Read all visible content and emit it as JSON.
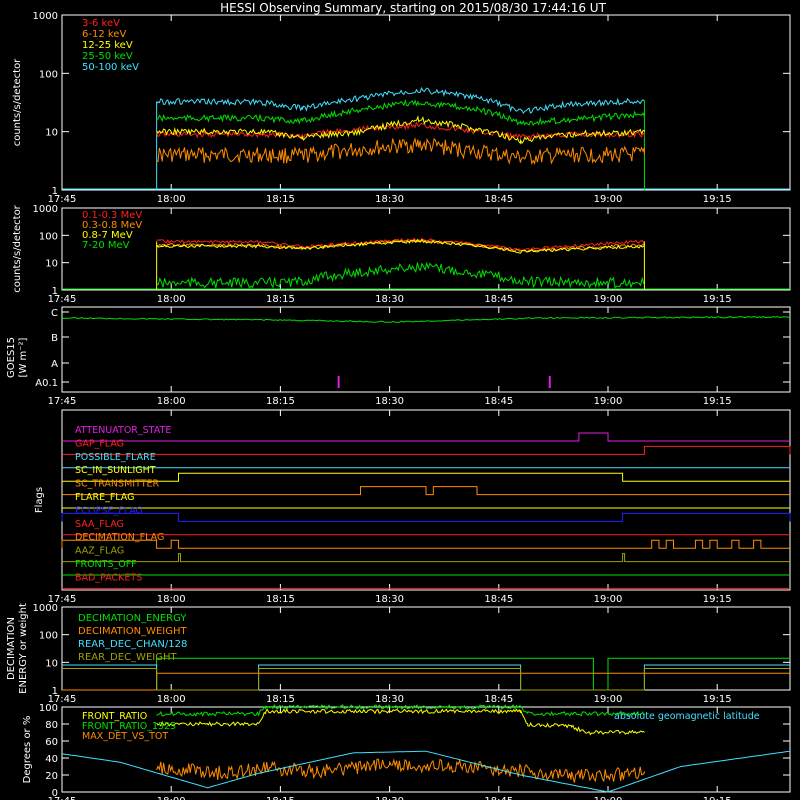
{
  "title": "HESSI Observing Summary, starting on 2015/08/30 17:44:16 UT",
  "colors": {
    "background": "#000000",
    "axis": "#ffffff",
    "red": "#ff2020",
    "orange": "#ff8c00",
    "yellow": "#ffff00",
    "green": "#00e000",
    "cyan": "#40e0ff",
    "magenta": "#e020e0",
    "blue": "#2020ff",
    "olive": "#a0a000"
  },
  "chart_data": [
    {
      "type": "line",
      "panel": "low-energy-lightcurves",
      "ylabel": "counts/s/detector",
      "yscale": "log",
      "ylim": [
        1,
        1000
      ],
      "y_ticks": [
        "1",
        "10",
        "100",
        "1000"
      ],
      "xlim": [
        "17:45",
        "19:25"
      ],
      "x_ticks": [
        "17:45",
        "18:00",
        "18:15",
        "18:30",
        "18:45",
        "19:00",
        "19:15"
      ],
      "legend_position": "top-left",
      "series": [
        {
          "name": "3-6 keV",
          "color": "red",
          "x": [
            "17:58",
            "18:12",
            "18:18",
            "18:26",
            "18:34",
            "18:42",
            "18:48",
            "18:55",
            "19:05"
          ],
          "values": [
            9,
            9,
            8.5,
            11,
            13,
            10,
            8,
            9,
            9
          ]
        },
        {
          "name": "6-12 keV",
          "color": "orange",
          "x": [
            "17:58",
            "18:12",
            "18:18",
            "18:26",
            "18:34",
            "18:42",
            "18:48",
            "18:55",
            "19:05"
          ],
          "values": [
            4,
            4,
            3.8,
            5,
            6,
            4.5,
            3.5,
            4,
            4
          ]
        },
        {
          "name": "12-25 keV",
          "color": "yellow",
          "x": [
            "17:58",
            "18:12",
            "18:18",
            "18:26",
            "18:34",
            "18:42",
            "18:48",
            "18:55",
            "19:05"
          ],
          "values": [
            10,
            10,
            8,
            10,
            16,
            11,
            7,
            9,
            10
          ]
        },
        {
          "name": "25-50 keV",
          "color": "green",
          "x": [
            "17:58",
            "18:12",
            "18:18",
            "18:26",
            "18:34",
            "18:42",
            "18:48",
            "18:55",
            "19:05"
          ],
          "values": [
            17,
            17,
            15,
            24,
            32,
            24,
            14,
            16,
            20
          ]
        },
        {
          "name": "50-100 keV",
          "color": "cyan",
          "x": [
            "17:58",
            "18:12",
            "18:18",
            "18:26",
            "18:34",
            "18:42",
            "18:48",
            "18:55",
            "19:05"
          ],
          "values": [
            33,
            32,
            25,
            38,
            52,
            38,
            22,
            30,
            34
          ]
        }
      ]
    },
    {
      "type": "line",
      "panel": "high-energy-lightcurves",
      "ylabel": "counts/s/detector",
      "yscale": "log",
      "ylim": [
        1,
        1000
      ],
      "y_ticks": [
        "1",
        "10",
        "100",
        "1000"
      ],
      "xlim": [
        "17:45",
        "19:25"
      ],
      "x_ticks": [
        "17:45",
        "18:00",
        "18:15",
        "18:30",
        "18:45",
        "19:00",
        "19:15"
      ],
      "legend_position": "top-left",
      "series": [
        {
          "name": "0.1-0.3 MeV",
          "color": "red",
          "x": [
            "17:58",
            "18:12",
            "18:18",
            "18:34",
            "18:48",
            "19:05"
          ],
          "values": [
            60,
            58,
            38,
            70,
            28,
            60
          ]
        },
        {
          "name": "0.3-0.8 MeV",
          "color": "orange",
          "x": [
            "17:58",
            "18:12",
            "18:18",
            "18:34",
            "18:48",
            "19:05"
          ],
          "values": [
            45,
            44,
            34,
            65,
            26,
            45
          ]
        },
        {
          "name": "0.8-7 MeV",
          "color": "yellow",
          "x": [
            "17:58",
            "18:12",
            "18:18",
            "18:34",
            "18:48",
            "19:05"
          ],
          "values": [
            40,
            40,
            32,
            62,
            25,
            40
          ]
        },
        {
          "name": "7-20 MeV",
          "color": "green",
          "x": [
            "17:58",
            "18:12",
            "18:18",
            "18:34",
            "18:48",
            "19:05"
          ],
          "values": [
            1.8,
            1.8,
            2,
            7,
            2,
            1.8
          ]
        }
      ]
    },
    {
      "type": "line",
      "panel": "goes",
      "ylabel_lines": [
        "GOES15",
        "[W m⁻²]"
      ],
      "y_ticks": [
        "A0.1",
        "A",
        "B",
        "C"
      ],
      "xlim": [
        "17:45",
        "19:25"
      ],
      "x_ticks": [
        "17:45",
        "18:00",
        "18:15",
        "18:30",
        "18:45",
        "19:00",
        "19:15"
      ],
      "series": [
        {
          "color": "green",
          "x": [
            "17:45",
            "18:15",
            "18:30",
            "18:50",
            "19:25"
          ],
          "values": [
            0.3,
            0.2,
            0.1,
            0.3,
            0.35
          ]
        }
      ],
      "markers": [
        {
          "color": "magenta",
          "x": "18:23"
        },
        {
          "color": "magenta",
          "x": "18:52"
        }
      ]
    },
    {
      "type": "line",
      "panel": "flags",
      "ylabel": "Flags",
      "xlim": [
        "17:45",
        "19:25"
      ],
      "x_ticks": [
        "17:45",
        "18:00",
        "18:15",
        "18:30",
        "18:45",
        "19:00",
        "19:15"
      ],
      "series": [
        {
          "name": "ATTENUATOR_STATE",
          "color": "magenta",
          "on_intervals": [
            [
              "18:56",
              "19:00"
            ]
          ]
        },
        {
          "name": "GAP_FLAG",
          "color": "red",
          "on_intervals": [
            [
              "19:05",
              "19:25"
            ]
          ]
        },
        {
          "name": "POSSIBLE_FLARE",
          "color": "cyan",
          "on_intervals": []
        },
        {
          "name": "SC_IN_SUNLIGHT",
          "color": "yellow",
          "on_intervals": [
            [
              "18:01",
              "19:02"
            ]
          ]
        },
        {
          "name": "SC_TRANSMITTER",
          "color": "orange",
          "on_intervals": [
            [
              "18:26",
              "18:35"
            ],
            [
              "18:36",
              "18:42"
            ]
          ]
        },
        {
          "name": "FLARE_FLAG",
          "color": "yellow",
          "on_intervals": []
        },
        {
          "name": "ECLIPSE_FLAG",
          "color": "blue",
          "on_intervals": [
            [
              "17:45",
              "18:01"
            ],
            [
              "19:02",
              "19:25"
            ]
          ]
        },
        {
          "name": "SAA_FLAG",
          "color": "red",
          "on_intervals": []
        },
        {
          "name": "DECIMATION_FLAG",
          "color": "orange",
          "on_intervals": [
            [
              "17:45",
              "17:58"
            ],
            [
              "18:00",
              "18:01"
            ],
            [
              "19:06",
              "19:07"
            ],
            [
              "19:08",
              "19:09"
            ],
            [
              "19:12",
              "19:13"
            ],
            [
              "19:14",
              "19:15"
            ],
            [
              "19:17",
              "19:18"
            ],
            [
              "19:20",
              "19:21"
            ]
          ]
        },
        {
          "name": "AAZ_FLAG",
          "color": "olive",
          "on_intervals": [
            [
              "18:01",
              "18:01"
            ],
            [
              "19:02",
              "19:02"
            ]
          ]
        },
        {
          "name": "FRONTS_OFF",
          "color": "green",
          "on_intervals": []
        },
        {
          "name": "BAD_PACKETS",
          "color": "red",
          "on_intervals": []
        }
      ]
    },
    {
      "type": "line",
      "panel": "decimation",
      "ylabel_lines": [
        "DECIMATION",
        "ENERGY or weight"
      ],
      "yscale": "log",
      "ylim": [
        1,
        1000
      ],
      "y_ticks": [
        "1",
        "10",
        "100",
        "1000"
      ],
      "xlim": [
        "17:45",
        "19:25"
      ],
      "x_ticks": [
        "17:45",
        "18:00",
        "18:15",
        "18:30",
        "18:45",
        "19:00",
        "19:15"
      ],
      "legend_position": "top-left",
      "series": [
        {
          "name": "DECIMATION_ENERGY",
          "color": "green",
          "steps": [
            [
              "17:45",
              1
            ],
            [
              "17:58",
              14
            ],
            [
              "18:58",
              1
            ],
            [
              "19:00",
              14
            ],
            [
              "19:25",
              14
            ]
          ]
        },
        {
          "name": "DECIMATION_WEIGHT",
          "color": "orange",
          "steps": [
            [
              "17:45",
              1
            ],
            [
              "17:58",
              4
            ],
            [
              "19:25",
              4
            ]
          ]
        },
        {
          "name": "REAR_DEC_CHAN/128",
          "color": "cyan",
          "steps": [
            [
              "17:45",
              8
            ],
            [
              "17:58",
              1
            ],
            [
              "18:12",
              8
            ],
            [
              "18:48",
              1
            ],
            [
              "19:05",
              8
            ],
            [
              "19:25",
              8
            ]
          ]
        },
        {
          "name": "REAR_DEC_WEIGHT",
          "color": "olive",
          "steps": [
            [
              "17:45",
              6
            ],
            [
              "17:58",
              1
            ],
            [
              "18:12",
              6
            ],
            [
              "18:48",
              1
            ],
            [
              "19:05",
              6
            ],
            [
              "19:25",
              6
            ]
          ]
        }
      ]
    },
    {
      "type": "line",
      "panel": "ratios",
      "ylabel": "Degrees or %",
      "ylim": [
        0,
        100
      ],
      "y_ticks": [
        "0",
        "20",
        "40",
        "60",
        "80",
        "100"
      ],
      "xlim": [
        "17:45",
        "19:25"
      ],
      "x_ticks": [
        "17:45",
        "18:00",
        "18:15",
        "18:30",
        "18:45",
        "19:00",
        "19:15"
      ],
      "legend_position": "top-left",
      "series": [
        {
          "name": "FRONT_RATIO",
          "color": "yellow",
          "x": [
            "17:58",
            "18:12",
            "18:13",
            "18:48",
            "18:49",
            "18:55",
            "18:57",
            "19:05"
          ],
          "values": [
            80,
            80,
            95,
            95,
            80,
            77,
            70,
            70
          ]
        },
        {
          "name": "FRONT_RATIO_1525",
          "color": "green",
          "x": [
            "17:58",
            "18:12",
            "18:13",
            "18:48",
            "18:49",
            "19:05"
          ],
          "values": [
            92,
            92,
            100,
            100,
            92,
            92
          ]
        },
        {
          "name": "MAX_DET_VS_TOT",
          "color": "orange",
          "x": [
            "17:58",
            "18:06",
            "18:14",
            "18:20",
            "18:30",
            "18:40",
            "18:48",
            "18:55",
            "19:05"
          ],
          "values": [
            30,
            22,
            28,
            24,
            33,
            30,
            25,
            18,
            22
          ]
        },
        {
          "name": "absolute geomagnetic latitude",
          "color": "cyan",
          "x": [
            "17:45",
            "17:53",
            "18:05",
            "18:12",
            "18:25",
            "18:35",
            "18:48",
            "19:00",
            "19:10",
            "19:25"
          ],
          "values": [
            45,
            35,
            5,
            22,
            46,
            48,
            20,
            0,
            30,
            48
          ]
        }
      ]
    }
  ]
}
